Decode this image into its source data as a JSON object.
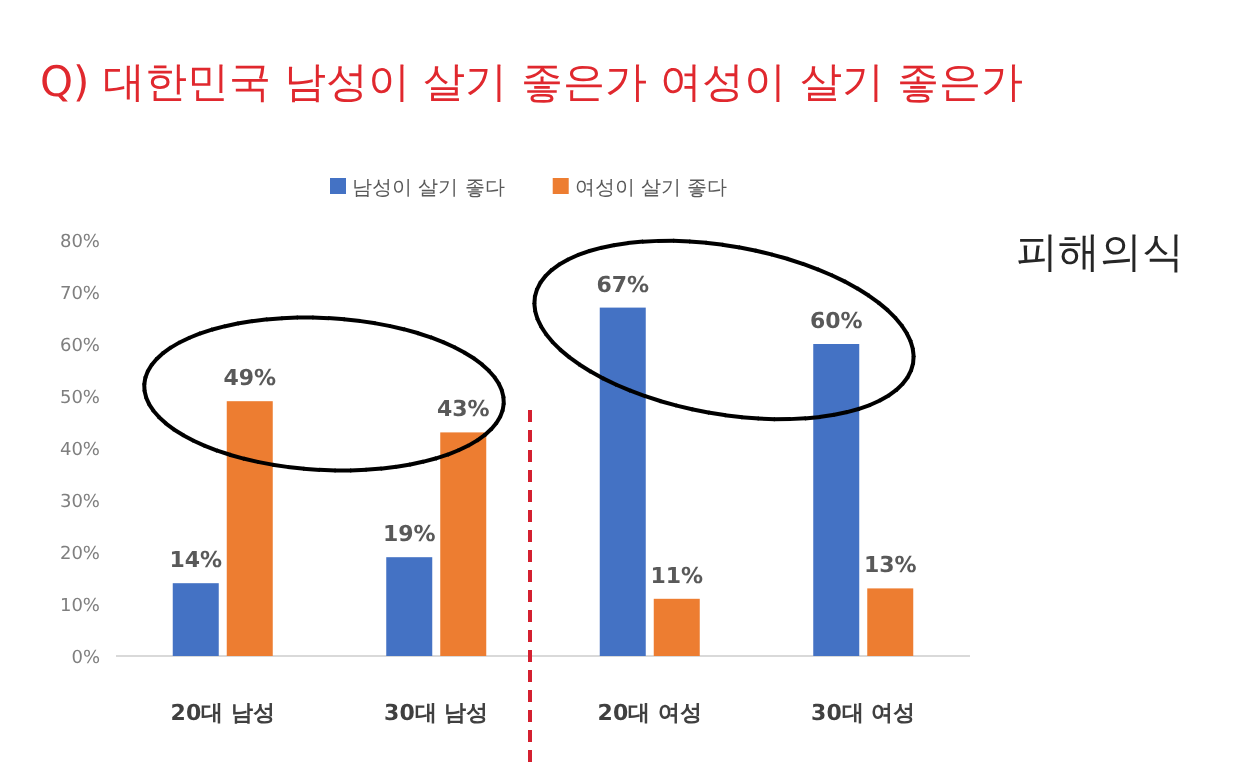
{
  "chart_data": {
    "type": "bar",
    "title": "Q) 대한민국 남성이 살기 좋은가 여성이 살기 좋은가",
    "categories": [
      "20대 남성",
      "30대 남성",
      "20대 여성",
      "30대 여성"
    ],
    "series": [
      {
        "name": "남성이 살기 좋다",
        "color": "#4472c4",
        "values": [
          14,
          19,
          67,
          60
        ],
        "value_labels": [
          "14%",
          "19%",
          "67%",
          "60%"
        ]
      },
      {
        "name": "여성이 살기 좋다",
        "color": "#ed7d31",
        "values": [
          49,
          43,
          11,
          13
        ],
        "value_labels": [
          "49%",
          "43%",
          "11%",
          "13%"
        ]
      }
    ],
    "ylim": [
      0,
      80
    ],
    "yticks": [
      {
        "value": 0,
        "label": "0%"
      },
      {
        "value": 10,
        "label": "10%"
      },
      {
        "value": 20,
        "label": "20%"
      },
      {
        "value": 30,
        "label": "30%"
      },
      {
        "value": 40,
        "label": "40%"
      },
      {
        "value": 50,
        "label": "50%"
      },
      {
        "value": 60,
        "label": "60%"
      },
      {
        "value": 70,
        "label": "70%"
      },
      {
        "value": 80,
        "label": "80%"
      }
    ],
    "annotations": [
      "피해의식"
    ],
    "legend": "top"
  }
}
